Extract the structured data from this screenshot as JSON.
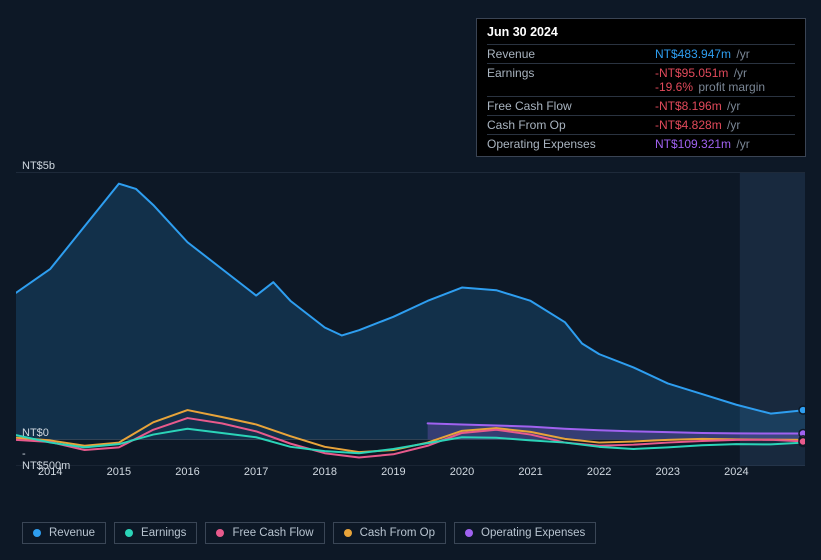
{
  "tooltip": {
    "title": "Jun 30 2024",
    "rows": [
      {
        "label": "Revenue",
        "value": "NT$483.947m",
        "suffix": "/yr",
        "color": "#2e9ef0",
        "extra": null
      },
      {
        "label": "Earnings",
        "value": "-NT$95.051m",
        "suffix": "/yr",
        "color": "#e24a5b",
        "extra": {
          "value": "-19.6%",
          "suffix": "profit margin",
          "color": "#e24a5b"
        }
      },
      {
        "label": "Free Cash Flow",
        "value": "-NT$8.196m",
        "suffix": "/yr",
        "color": "#e24a5b",
        "extra": null
      },
      {
        "label": "Cash From Op",
        "value": "-NT$4.828m",
        "suffix": "/yr",
        "color": "#e24a5b",
        "extra": null
      },
      {
        "label": "Operating Expenses",
        "value": "NT$109.321m",
        "suffix": "/yr",
        "color": "#a062f0",
        "extra": null
      }
    ]
  },
  "chart": {
    "type": "area-line",
    "background_color": "#0d1826",
    "grid_color": "#8a95a4",
    "x_years": [
      "2014",
      "2015",
      "2016",
      "2017",
      "2018",
      "2019",
      "2020",
      "2021",
      "2022",
      "2023",
      "2024"
    ],
    "x_range": [
      2013.5,
      2025
    ],
    "y_range_m": [
      -500,
      5000
    ],
    "y_ticks": [
      {
        "value_m": 5000,
        "label": "NT$5b"
      },
      {
        "value_m": 0,
        "label": "NT$0"
      },
      {
        "value_m": -500,
        "label": "-NT$500m"
      }
    ],
    "highlight_band_start": 2024.05,
    "highlight_band_end": 2025,
    "end_markers": [
      {
        "series": "revenue",
        "x": 2025,
        "y_m": 550
      },
      {
        "series": "operating_expenses",
        "x": 2025,
        "y_m": 110
      },
      {
        "series": "earnings",
        "x": 2025,
        "y_m": -60
      },
      {
        "series": "cash_from_op",
        "x": 2025,
        "y_m": -10
      },
      {
        "series": "free_cash_flow",
        "x": 2025,
        "y_m": -40
      }
    ],
    "series": {
      "revenue": {
        "label": "Revenue",
        "color": "#2e9ef0",
        "line_width": 2,
        "fill": "rgba(46,158,240,0.18)",
        "points": [
          [
            2013.5,
            2750
          ],
          [
            2014,
            3200
          ],
          [
            2014.5,
            4000
          ],
          [
            2015,
            4800
          ],
          [
            2015.25,
            4700
          ],
          [
            2015.5,
            4400
          ],
          [
            2016,
            3700
          ],
          [
            2016.5,
            3200
          ],
          [
            2017,
            2700
          ],
          [
            2017.25,
            2950
          ],
          [
            2017.5,
            2600
          ],
          [
            2018,
            2100
          ],
          [
            2018.25,
            1950
          ],
          [
            2018.5,
            2050
          ],
          [
            2019,
            2300
          ],
          [
            2019.5,
            2600
          ],
          [
            2020,
            2850
          ],
          [
            2020.5,
            2800
          ],
          [
            2021,
            2600
          ],
          [
            2021.5,
            2200
          ],
          [
            2021.75,
            1800
          ],
          [
            2022,
            1600
          ],
          [
            2022.5,
            1350
          ],
          [
            2023,
            1050
          ],
          [
            2023.5,
            850
          ],
          [
            2024,
            650
          ],
          [
            2024.5,
            484
          ],
          [
            2025,
            550
          ]
        ]
      },
      "earnings": {
        "label": "Earnings",
        "color": "#2bd4b8",
        "line_width": 2,
        "points": [
          [
            2013.5,
            80
          ],
          [
            2014,
            -60
          ],
          [
            2014.5,
            -150
          ],
          [
            2015,
            -90
          ],
          [
            2015.5,
            90
          ],
          [
            2016,
            200
          ],
          [
            2016.5,
            120
          ],
          [
            2017,
            40
          ],
          [
            2017.5,
            -140
          ],
          [
            2018,
            -220
          ],
          [
            2018.5,
            -260
          ],
          [
            2019,
            -180
          ],
          [
            2019.5,
            -70
          ],
          [
            2020,
            40
          ],
          [
            2020.5,
            30
          ],
          [
            2021,
            -20
          ],
          [
            2021.5,
            -60
          ],
          [
            2022,
            -140
          ],
          [
            2022.5,
            -180
          ],
          [
            2023,
            -150
          ],
          [
            2023.5,
            -110
          ],
          [
            2024,
            -90
          ],
          [
            2024.5,
            -95
          ],
          [
            2025,
            -60
          ]
        ]
      },
      "free_cash_flow": {
        "label": "Free Cash Flow",
        "color": "#e85a8c",
        "line_width": 2,
        "points": [
          [
            2013.5,
            -10
          ],
          [
            2014,
            -50
          ],
          [
            2014.5,
            -200
          ],
          [
            2015,
            -150
          ],
          [
            2015.5,
            180
          ],
          [
            2016,
            400
          ],
          [
            2016.5,
            300
          ],
          [
            2017,
            150
          ],
          [
            2017.5,
            -80
          ],
          [
            2018,
            -260
          ],
          [
            2018.5,
            -340
          ],
          [
            2019,
            -280
          ],
          [
            2019.5,
            -120
          ],
          [
            2020,
            120
          ],
          [
            2020.5,
            180
          ],
          [
            2021,
            90
          ],
          [
            2021.5,
            -60
          ],
          [
            2022,
            -120
          ],
          [
            2022.5,
            -100
          ],
          [
            2023,
            -60
          ],
          [
            2023.5,
            -30
          ],
          [
            2024,
            -10
          ],
          [
            2024.5,
            -8
          ],
          [
            2025,
            -40
          ]
        ]
      },
      "cash_from_op": {
        "label": "Cash From Op",
        "color": "#e8a43a",
        "line_width": 2,
        "points": [
          [
            2013.5,
            30
          ],
          [
            2014,
            -20
          ],
          [
            2014.5,
            -120
          ],
          [
            2015,
            -60
          ],
          [
            2015.5,
            320
          ],
          [
            2016,
            550
          ],
          [
            2016.5,
            420
          ],
          [
            2017,
            280
          ],
          [
            2017.5,
            60
          ],
          [
            2018,
            -140
          ],
          [
            2018.5,
            -240
          ],
          [
            2019,
            -200
          ],
          [
            2019.5,
            -60
          ],
          [
            2020,
            160
          ],
          [
            2020.5,
            210
          ],
          [
            2021,
            140
          ],
          [
            2021.5,
            10
          ],
          [
            2022,
            -60
          ],
          [
            2022.5,
            -40
          ],
          [
            2023,
            -10
          ],
          [
            2023.5,
            10
          ],
          [
            2024,
            0
          ],
          [
            2024.5,
            -5
          ],
          [
            2025,
            -10
          ]
        ]
      },
      "operating_expenses": {
        "label": "Operating Expenses",
        "color": "#a062f0",
        "line_width": 2,
        "fill": "rgba(160,98,240,0.25)",
        "start_x": 2019.5,
        "points": [
          [
            2019.5,
            300
          ],
          [
            2020,
            280
          ],
          [
            2020.5,
            260
          ],
          [
            2021,
            240
          ],
          [
            2021.5,
            200
          ],
          [
            2022,
            170
          ],
          [
            2022.5,
            150
          ],
          [
            2023,
            135
          ],
          [
            2023.5,
            120
          ],
          [
            2024,
            112
          ],
          [
            2024.5,
            109
          ],
          [
            2025,
            110
          ]
        ]
      }
    }
  },
  "legend": [
    {
      "key": "revenue",
      "label": "Revenue",
      "color": "#2e9ef0"
    },
    {
      "key": "earnings",
      "label": "Earnings",
      "color": "#2bd4b8"
    },
    {
      "key": "free_cash_flow",
      "label": "Free Cash Flow",
      "color": "#e85a8c"
    },
    {
      "key": "cash_from_op",
      "label": "Cash From Op",
      "color": "#e8a43a"
    },
    {
      "key": "operating_expenses",
      "label": "Operating Expenses",
      "color": "#a062f0"
    }
  ]
}
